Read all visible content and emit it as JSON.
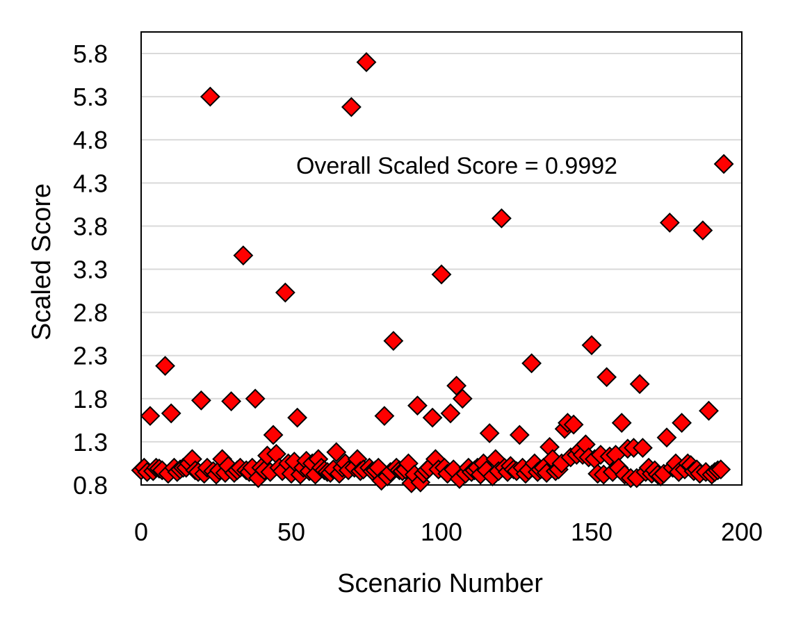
{
  "chart_data": {
    "type": "scatter",
    "title": "",
    "xlabel": "Scenario Number",
    "ylabel": "Scaled Score",
    "xlim": [
      0,
      200
    ],
    "ylim": [
      0.8,
      6.05
    ],
    "x_ticks": [
      0,
      50,
      100,
      150,
      200
    ],
    "y_ticks": [
      0.8,
      1.3,
      1.8,
      2.3,
      2.8,
      3.3,
      3.8,
      4.3,
      4.8,
      5.3,
      5.8
    ],
    "grid": "horizontal",
    "legend": "none",
    "annotation": "Overall Scaled Score = 0.9992",
    "marker": {
      "shape": "diamond",
      "fill": "#ff0000",
      "stroke": "#000000"
    },
    "series": [
      {
        "points": [
          [
            0,
            0.97
          ],
          [
            1,
            1.0
          ],
          [
            2,
            0.95
          ],
          [
            3,
            1.6
          ],
          [
            4,
            0.96
          ],
          [
            5,
            1.0
          ],
          [
            6,
            0.99
          ],
          [
            7,
            0.97
          ],
          [
            8,
            2.18
          ],
          [
            9,
            0.93
          ],
          [
            10,
            1.63
          ],
          [
            11,
            1.0
          ],
          [
            12,
            0.95
          ],
          [
            13,
            0.98
          ],
          [
            14,
            1.0
          ],
          [
            15,
            1.0
          ],
          [
            16,
            1.05
          ],
          [
            17,
            1.1
          ],
          [
            18,
            0.97
          ],
          [
            19,
            0.95
          ],
          [
            20,
            1.78
          ],
          [
            21,
            0.93
          ],
          [
            22,
            1.0
          ],
          [
            23,
            5.3
          ],
          [
            24,
            0.96
          ],
          [
            25,
            0.92
          ],
          [
            26,
            0.97
          ],
          [
            27,
            1.1
          ],
          [
            28,
            0.94
          ],
          [
            29,
            1.02
          ],
          [
            30,
            1.77
          ],
          [
            31,
            0.94
          ],
          [
            32,
            0.97
          ],
          [
            33,
            1.0
          ],
          [
            34,
            3.46
          ],
          [
            35,
            0.97
          ],
          [
            36,
            0.95
          ],
          [
            37,
            1.0
          ],
          [
            38,
            1.8
          ],
          [
            39,
            0.88
          ],
          [
            40,
            1.0
          ],
          [
            41,
            0.97
          ],
          [
            42,
            1.14
          ],
          [
            43,
            0.95
          ],
          [
            44,
            1.38
          ],
          [
            45,
            1.16
          ],
          [
            46,
            1.0
          ],
          [
            47,
            0.96
          ],
          [
            48,
            3.03
          ],
          [
            49,
            1.05
          ],
          [
            50,
            0.93
          ],
          [
            51,
            1.07
          ],
          [
            52,
            1.58
          ],
          [
            53,
            0.92
          ],
          [
            54,
            1.0
          ],
          [
            55,
            1.08
          ],
          [
            56,
            0.96
          ],
          [
            57,
            1.05
          ],
          [
            58,
            0.92
          ],
          [
            59,
            1.1
          ],
          [
            60,
            1.0
          ],
          [
            61,
            0.97
          ],
          [
            62,
            0.95
          ],
          [
            63,
            0.94
          ],
          [
            64,
            0.98
          ],
          [
            65,
            1.18
          ],
          [
            66,
            0.93
          ],
          [
            67,
            1.0
          ],
          [
            68,
            1.05
          ],
          [
            69,
            0.97
          ],
          [
            70,
            5.18
          ],
          [
            71,
            1.0
          ],
          [
            72,
            1.1
          ],
          [
            73,
            0.96
          ],
          [
            74,
            0.98
          ],
          [
            75,
            5.7
          ],
          [
            76,
            1.0
          ],
          [
            77,
            0.96
          ],
          [
            78,
            0.97
          ],
          [
            79,
            1.0
          ],
          [
            80,
            0.85
          ],
          [
            81,
            1.6
          ],
          [
            82,
            0.9
          ],
          [
            83,
            0.95
          ],
          [
            84,
            2.47
          ],
          [
            85,
            1.0
          ],
          [
            86,
            0.97
          ],
          [
            87,
            0.96
          ],
          [
            88,
            0.98
          ],
          [
            89,
            1.05
          ],
          [
            90,
            0.82
          ],
          [
            91,
            0.92
          ],
          [
            92,
            1.72
          ],
          [
            93,
            0.83
          ],
          [
            94,
            0.93
          ],
          [
            95,
            0.97
          ],
          [
            96,
            1.0
          ],
          [
            97,
            1.58
          ],
          [
            98,
            1.1
          ],
          [
            99,
            0.98
          ],
          [
            100,
            3.24
          ],
          [
            101,
            1.0
          ],
          [
            102,
            0.93
          ],
          [
            103,
            1.63
          ],
          [
            104,
            0.98
          ],
          [
            105,
            1.95
          ],
          [
            106,
            0.87
          ],
          [
            107,
            1.8
          ],
          [
            108,
            0.93
          ],
          [
            109,
            1.0
          ],
          [
            110,
            0.95
          ],
          [
            111,
            0.97
          ],
          [
            112,
            1.0
          ],
          [
            113,
            0.92
          ],
          [
            114,
            1.05
          ],
          [
            115,
            0.97
          ],
          [
            116,
            1.4
          ],
          [
            117,
            0.9
          ],
          [
            118,
            1.1
          ],
          [
            119,
            0.96
          ],
          [
            120,
            3.89
          ],
          [
            121,
            1.0
          ],
          [
            122,
            0.95
          ],
          [
            123,
            1.02
          ],
          [
            124,
            0.98
          ],
          [
            125,
            0.96
          ],
          [
            126,
            1.38
          ],
          [
            127,
            1.0
          ],
          [
            128,
            0.93
          ],
          [
            129,
            0.97
          ],
          [
            130,
            2.21
          ],
          [
            131,
            1.05
          ],
          [
            132,
            0.95
          ],
          [
            133,
            0.98
          ],
          [
            134,
            1.0
          ],
          [
            135,
            0.94
          ],
          [
            136,
            1.24
          ],
          [
            137,
            1.1
          ],
          [
            138,
            0.96
          ],
          [
            139,
            0.98
          ],
          [
            140,
            1.05
          ],
          [
            141,
            1.45
          ],
          [
            142,
            1.52
          ],
          [
            143,
            1.12
          ],
          [
            144,
            1.5
          ],
          [
            145,
            1.15
          ],
          [
            146,
            1.2
          ],
          [
            147,
            1.15
          ],
          [
            148,
            1.27
          ],
          [
            149,
            1.12
          ],
          [
            150,
            2.42
          ],
          [
            151,
            1.1
          ],
          [
            152,
            0.93
          ],
          [
            153,
            1.15
          ],
          [
            154,
            0.92
          ],
          [
            155,
            2.05
          ],
          [
            156,
            1.13
          ],
          [
            157,
            0.95
          ],
          [
            158,
            1.15
          ],
          [
            159,
            1.0
          ],
          [
            160,
            1.52
          ],
          [
            161,
            0.92
          ],
          [
            162,
            1.22
          ],
          [
            163,
            0.88
          ],
          [
            164,
            1.23
          ],
          [
            165,
            0.88
          ],
          [
            166,
            1.97
          ],
          [
            167,
            1.23
          ],
          [
            168,
            0.95
          ],
          [
            169,
            1.0
          ],
          [
            170,
            0.93
          ],
          [
            171,
            0.97
          ],
          [
            172,
            0.92
          ],
          [
            173,
            0.9
          ],
          [
            174,
            0.93
          ],
          [
            175,
            1.35
          ],
          [
            176,
            3.84
          ],
          [
            177,
            1.0
          ],
          [
            178,
            1.05
          ],
          [
            179,
            0.95
          ],
          [
            180,
            1.52
          ],
          [
            181,
            0.98
          ],
          [
            182,
            1.05
          ],
          [
            183,
            1.03
          ],
          [
            184,
            0.96
          ],
          [
            185,
            0.98
          ],
          [
            186,
            0.93
          ],
          [
            187,
            3.75
          ],
          [
            188,
            0.95
          ],
          [
            189,
            1.66
          ],
          [
            190,
            0.92
          ],
          [
            191,
            0.95
          ],
          [
            192,
            0.97
          ],
          [
            193,
            0.98
          ],
          [
            194,
            4.52
          ]
        ]
      }
    ]
  }
}
